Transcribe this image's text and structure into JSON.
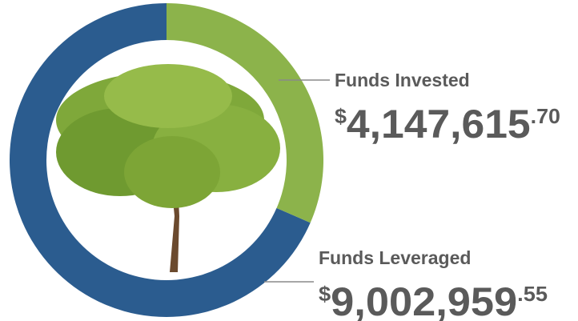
{
  "chart_data": {
    "type": "donut",
    "categories": [
      "Funds Invested",
      "Funds Leveraged"
    ],
    "values": [
      4147615.7,
      9002959.55
    ],
    "value_labels": [
      "$4,147,615.70",
      "$9,002,959.55"
    ],
    "colors": [
      "#8cb34b",
      "#2b5c8f"
    ]
  }
}
